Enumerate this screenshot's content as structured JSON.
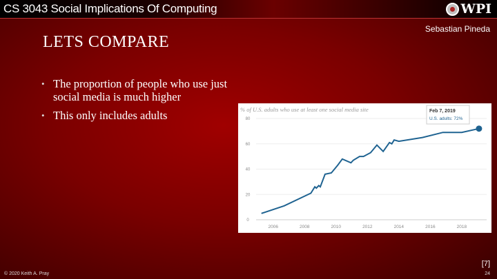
{
  "header": {
    "course": "CS 3043 Social Implications Of Computing",
    "logo_text": "WPI",
    "author": "Sebastian Pineda"
  },
  "slide": {
    "title": "LETS COMPARE",
    "bullets": [
      "The proportion of people who use just social media is much higher",
      "This only includes adults"
    ]
  },
  "chart_data": {
    "type": "line",
    "title": "% of U.S. adults who use at least one social media site",
    "x": [
      2005.25,
      2006.7,
      2008.4,
      2008.65,
      2008.75,
      2008.9,
      2009.0,
      2009.3,
      2009.7,
      2010.1,
      2010.4,
      2010.95,
      2011.1,
      2011.5,
      2011.75,
      2012.2,
      2012.6,
      2013.0,
      2013.4,
      2013.55,
      2013.7,
      2014.0,
      2015.5,
      2016.8,
      2018.0,
      2019.1
    ],
    "series": [
      {
        "name": "U.S. adults",
        "color": "#1f6391",
        "values": [
          5,
          11,
          21,
          26,
          25,
          27,
          26,
          36,
          37,
          43,
          48,
          45,
          47,
          50,
          50,
          53,
          59,
          54,
          61,
          60,
          63,
          62,
          65,
          69,
          69,
          72
        ]
      }
    ],
    "xticks": [
      "2006",
      "2008",
      "2010",
      "2012",
      "2014",
      "2016",
      "2018"
    ],
    "yticks": [
      "0",
      "20",
      "40",
      "60",
      "80"
    ],
    "ylim": [
      0,
      80
    ],
    "xlim": [
      2005,
      2019.5
    ],
    "tooltip": {
      "date": "Feb 7, 2019",
      "label": "U.S. adults: 72%"
    }
  },
  "footer": {
    "reference": "[7]",
    "copyright": "© 2020 Keith A. Pray",
    "page": "24"
  }
}
